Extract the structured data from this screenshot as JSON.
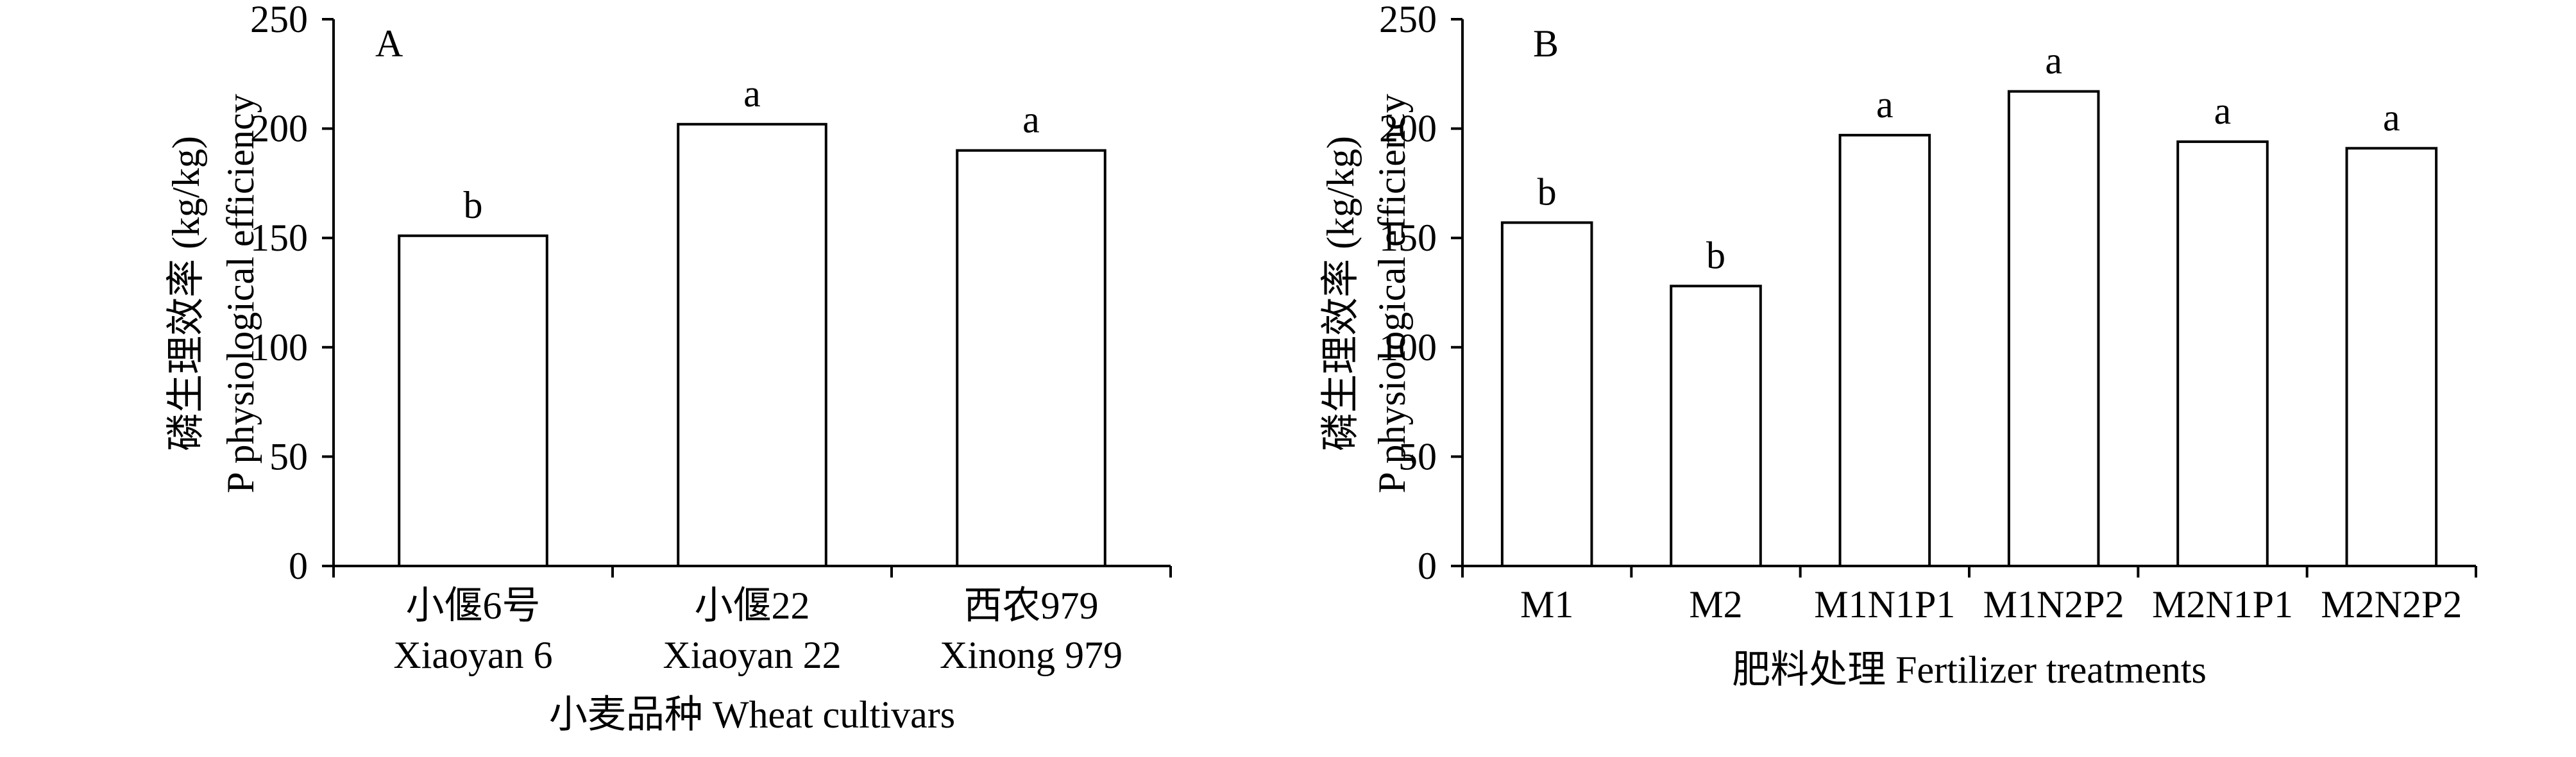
{
  "chart_data": [
    {
      "type": "bar",
      "panel_label": "A",
      "categories": [
        [
          "小偃6号",
          "Xiaoyan 6"
        ],
        [
          "小偃22",
          "Xiaoyan 22"
        ],
        [
          "西农979",
          "Xinong 979"
        ]
      ],
      "values": [
        151,
        202,
        190
      ],
      "significance": [
        "b",
        "a",
        "a"
      ],
      "ylabel": [
        "磷生理效率 (kg/kg)",
        "P physiological efficiency"
      ],
      "xlabel": "小麦品种 Wheat cultivars",
      "ylim": [
        0,
        250
      ],
      "yticks": [
        0,
        50,
        100,
        150,
        200,
        250
      ],
      "grid": false
    },
    {
      "type": "bar",
      "panel_label": "B",
      "categories": [
        [
          "M1"
        ],
        [
          "M2"
        ],
        [
          "M1N1P1"
        ],
        [
          "M1N2P2"
        ],
        [
          "M2N1P1"
        ],
        [
          "M2N2P2"
        ]
      ],
      "values": [
        157,
        128,
        197,
        217,
        194,
        191
      ],
      "significance": [
        "b",
        "b",
        "a",
        "a",
        "a",
        "a"
      ],
      "ylabel": [
        "磷生理效率 (kg/kg)",
        "P physiological efficiency"
      ],
      "xlabel": "肥料处理 Fertilizer treatments",
      "ylim": [
        0,
        250
      ],
      "yticks": [
        0,
        50,
        100,
        150,
        200,
        250
      ],
      "grid": false
    }
  ]
}
